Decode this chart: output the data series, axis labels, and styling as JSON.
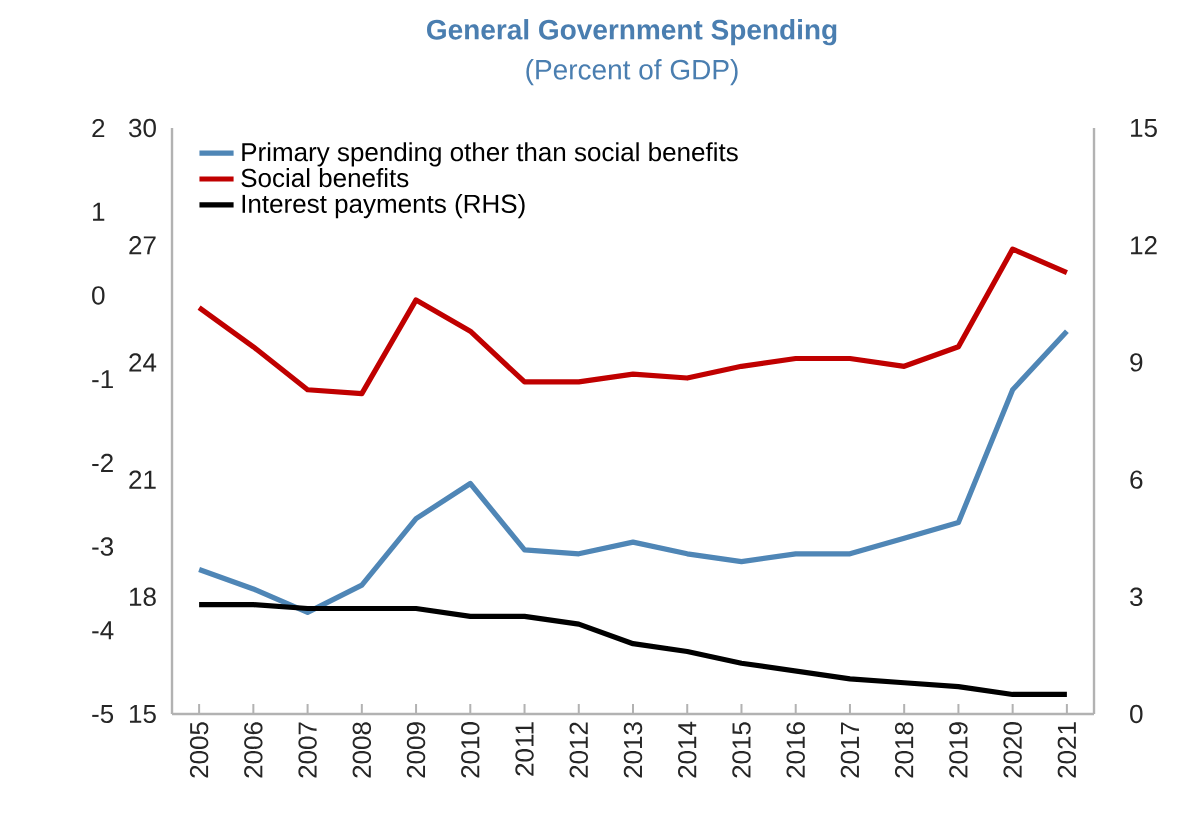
{
  "chart_data": {
    "type": "line",
    "title": "General Government Spending",
    "subtitle": "(Percent of GDP)",
    "categories": [
      "2005",
      "2006",
      "2007",
      "2008",
      "2009",
      "2010",
      "2011",
      "2012",
      "2013",
      "2014",
      "2015",
      "2016",
      "2017",
      "2018",
      "2019",
      "2020",
      "2021"
    ],
    "series": [
      {
        "name": "Primary spending other than social benefits",
        "color": "#4f86b6",
        "values": [
          18.7,
          18.2,
          17.6,
          18.3,
          20.0,
          20.9,
          19.2,
          19.1,
          19.4,
          19.1,
          18.9,
          19.1,
          19.1,
          19.5,
          19.9,
          23.3,
          24.8
        ]
      },
      {
        "name": "Social benefits",
        "color": "#c00000",
        "values": [
          25.4,
          24.4,
          23.3,
          23.2,
          25.6,
          24.8,
          23.5,
          23.5,
          23.7,
          23.6,
          23.9,
          24.1,
          24.1,
          23.9,
          24.4,
          26.9,
          26.3
        ]
      },
      {
        "name": "Interest payments (RHS)",
        "color": "#000000",
        "axis": "y2",
        "values": [
          2.8,
          2.8,
          2.7,
          2.7,
          2.7,
          2.5,
          2.5,
          2.3,
          1.8,
          1.6,
          1.3,
          1.1,
          0.9,
          0.8,
          0.7,
          0.5,
          0.5
        ]
      }
    ],
    "ylim": [
      15,
      30
    ],
    "yticks": [
      15,
      18,
      21,
      24,
      27,
      30
    ],
    "y2lim": [
      0,
      15
    ],
    "y2ticks": [
      0,
      3,
      6,
      9,
      12,
      15
    ],
    "y3lim": [
      -5,
      2
    ],
    "y3ticks": [
      -5,
      -4,
      -3,
      -2,
      -1,
      0,
      1,
      2
    ],
    "legend": "top left",
    "grid": false,
    "marker": "none",
    "line_style": "solid"
  }
}
